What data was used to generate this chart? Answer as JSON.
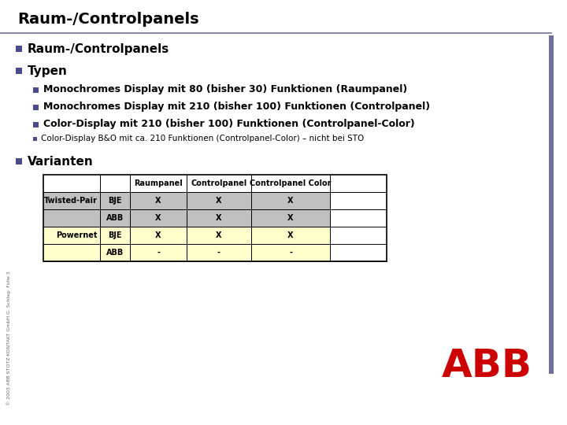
{
  "title": "Raum-/Controlpanels",
  "title_fontsize": 14,
  "title_fontweight": "bold",
  "bg_color": "#ffffff",
  "bullet_color": "#4a4a8c",
  "bullet1_items": [
    "Raum-/Controlpanels",
    "Typen"
  ],
  "bullet2_items": [
    "Monochromes Display mit 80 (bisher 30) Funktionen (Raumpanel)",
    "Monochromes Display mit 210 (bisher 100) Funktionen (Controlpanel)",
    "Color-Display mit 210 (bisher 100) Funktionen (Controlpanel-Color)"
  ],
  "bullet3_items": [
    "Color-Display B&O mit ca. 210 Funktionen (Controlpanel-Color) – nicht bei STO"
  ],
  "bullet4_items": [
    "Varianten"
  ],
  "table_headers": [
    "",
    "",
    "Raumpanel",
    "Controlpanel",
    "Controlpanel Color",
    ""
  ],
  "table_rows": [
    [
      "Twisted-Pair",
      "BJE",
      "X",
      "X",
      "X",
      ""
    ],
    [
      "",
      "ABB",
      "X",
      "X",
      "X",
      ""
    ],
    [
      "Powernet",
      "BJE",
      "X",
      "X",
      "X",
      ""
    ],
    [
      "",
      "ABB",
      "-",
      "-",
      "-",
      ""
    ]
  ],
  "row_colors": [
    "#c0c0c0",
    "#c0c0c0",
    "#ffffcc",
    "#ffffcc"
  ],
  "header_row_color": "#ffffff",
  "border_color": "#000000",
  "sidebar_color": "#7070a0",
  "abb_red": "#cc0000",
  "copyright_text": "© 2003 ABB STOTZ-KONTAKT GmbH G. Schlag- Folie 3"
}
